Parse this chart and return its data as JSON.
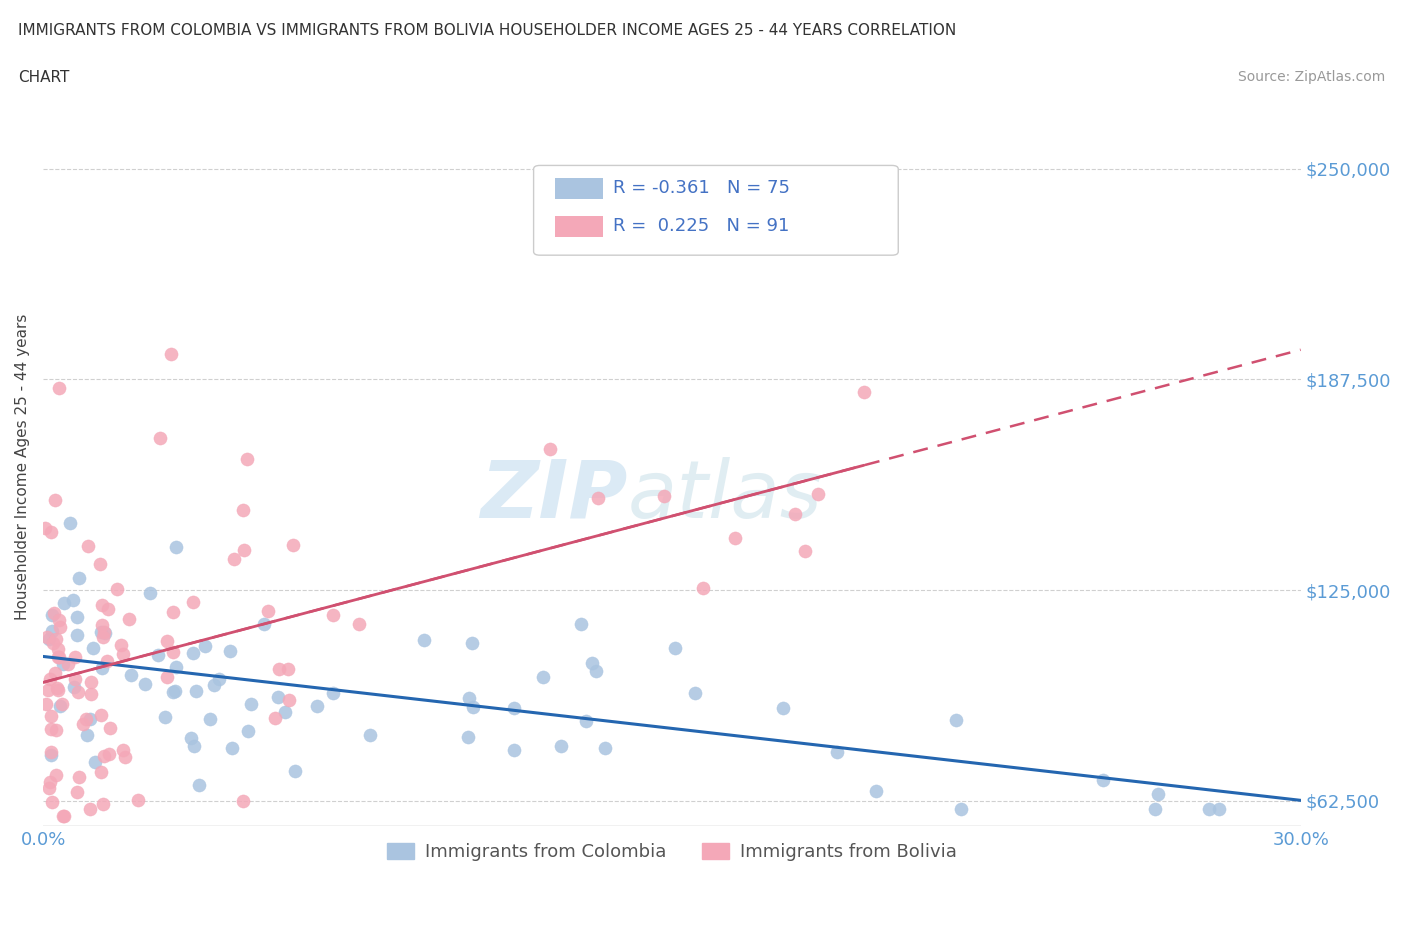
{
  "title_line1": "IMMIGRANTS FROM COLOMBIA VS IMMIGRANTS FROM BOLIVIA HOUSEHOLDER INCOME AGES 25 - 44 YEARS CORRELATION",
  "title_line2": "CHART",
  "source": "Source: ZipAtlas.com",
  "colombia_R": -0.361,
  "colombia_N": 75,
  "bolivia_R": 0.225,
  "bolivia_N": 91,
  "colombia_color": "#aac4e0",
  "bolivia_color": "#f4a8b8",
  "colombia_line_color": "#2466b0",
  "bolivia_line_color": "#d05070",
  "xlim": [
    0.0,
    0.3
  ],
  "ylim": [
    55000,
    268000
  ],
  "yticks": [
    62500,
    125000,
    187500,
    250000
  ],
  "ytick_labels": [
    "$62,500",
    "$125,000",
    "$187,500",
    "$250,000"
  ],
  "xticks": [
    0.0,
    0.05,
    0.1,
    0.15,
    0.2,
    0.25,
    0.3
  ],
  "xtick_labels": [
    "0.0%",
    "",
    "",
    "",
    "",
    "",
    "30.0%"
  ],
  "ylabel": "Householder Income Ages 25 - 44 years",
  "background_color": "#ffffff",
  "watermark_zip_color": "#c8dff0",
  "watermark_atlas_color": "#c8dfe8"
}
